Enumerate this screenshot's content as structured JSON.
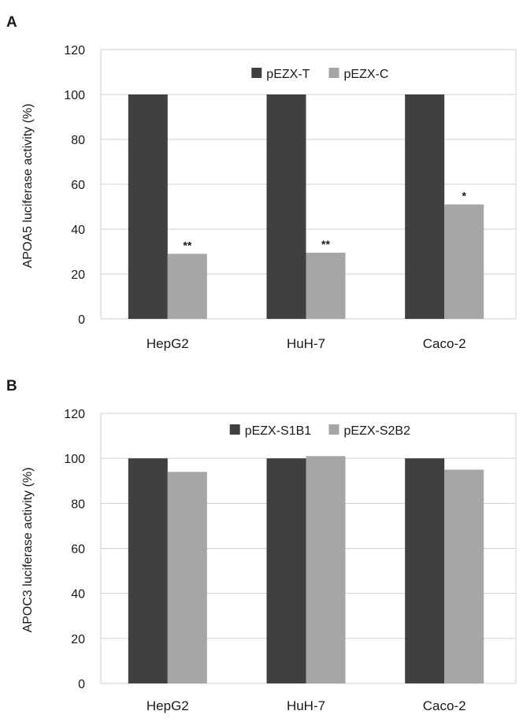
{
  "chart_data": [
    {
      "panel": "A",
      "type": "bar",
      "categories": [
        "HepG2",
        "HuH-7",
        "Caco-2"
      ],
      "series": [
        {
          "name": "pEZX-T",
          "values": [
            100,
            100,
            100
          ],
          "color": "#404040"
        },
        {
          "name": "pEZX-C",
          "values": [
            29,
            29.5,
            51
          ],
          "color": "#a6a6a6"
        }
      ],
      "annotations": [
        {
          "category": "HepG2",
          "series": "pEZX-C",
          "text": "**"
        },
        {
          "category": "HuH-7",
          "series": "pEZX-C",
          "text": "**"
        },
        {
          "category": "Caco-2",
          "series": "pEZX-C",
          "text": "*"
        }
      ],
      "ylabel": "APOA5  luciferase activity (%)",
      "ylim": [
        0,
        120
      ],
      "yticks": [
        0,
        20,
        40,
        60,
        80,
        100,
        120
      ],
      "grid": true,
      "legend": "top-center"
    },
    {
      "panel": "B",
      "type": "bar",
      "categories": [
        "HepG2",
        "HuH-7",
        "Caco-2"
      ],
      "series": [
        {
          "name": "pEZX-S1B1",
          "values": [
            100,
            100,
            100
          ],
          "color": "#404040"
        },
        {
          "name": "pEZX-S2B2",
          "values": [
            94,
            101,
            95
          ],
          "color": "#a6a6a6"
        }
      ],
      "annotations": [],
      "ylabel": "APOC3  luciferase activity (%)",
      "ylim": [
        0,
        120
      ],
      "yticks": [
        0,
        20,
        40,
        60,
        80,
        100,
        120
      ],
      "grid": true,
      "legend": "top-center"
    }
  ]
}
